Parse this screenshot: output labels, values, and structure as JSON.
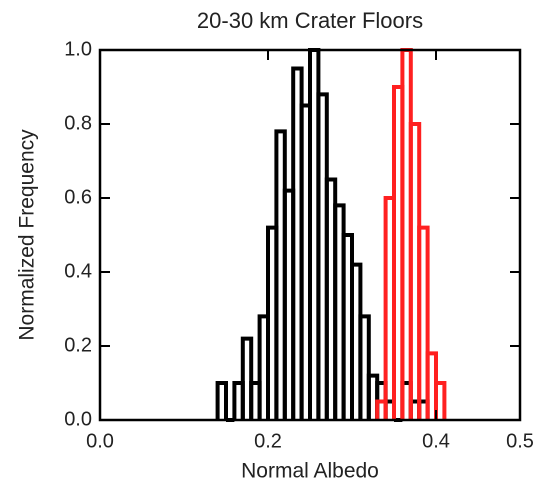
{
  "chart_data": {
    "type": "histogram",
    "title": "20-30 km Crater Floors",
    "xlabel": "Normal Albedo",
    "ylabel": "Normalized Frequency",
    "xlim": [
      0,
      0.5
    ],
    "ylim": [
      0,
      1
    ],
    "xticks": [
      {
        "value": 0,
        "label": "0.0"
      },
      0.2,
      0.4,
      0.5
    ],
    "yticks": [
      {
        "value": 0,
        "label": "0.0"
      },
      0.2,
      0.4,
      0.6,
      0.8,
      {
        "value": 1,
        "label": "1.0"
      }
    ],
    "series": [
      {
        "color": "#000000",
        "bins": [
          0.14,
          0.15,
          0.16,
          0.17,
          0.18,
          0.19,
          0.2,
          0.21,
          0.22,
          0.23,
          0.24,
          0.25,
          0.26,
          0.27,
          0.28,
          0.29,
          0.3,
          0.31,
          0.32,
          0.33,
          0.34,
          0.35,
          0.36,
          0.37,
          0.38,
          0.39
        ],
        "values": [
          0.1,
          0,
          0.1,
          0.22,
          0.1,
          0.28,
          0.52,
          0.78,
          0.62,
          0.95,
          0.85,
          1,
          0.88,
          0.65,
          0.58,
          0.5,
          0.42,
          0.28,
          0.12,
          0.1,
          0.05,
          0,
          0.1,
          0.05,
          0.05
        ]
      },
      {
        "color": "#ff2020",
        "bins": [
          0.33,
          0.34,
          0.35,
          0.36,
          0.37,
          0.38,
          0.39,
          0.4,
          0.41
        ],
        "values": [
          0.05,
          0.6,
          0.9,
          1,
          0.8,
          0.52,
          0.18,
          0.1
        ]
      }
    ]
  }
}
